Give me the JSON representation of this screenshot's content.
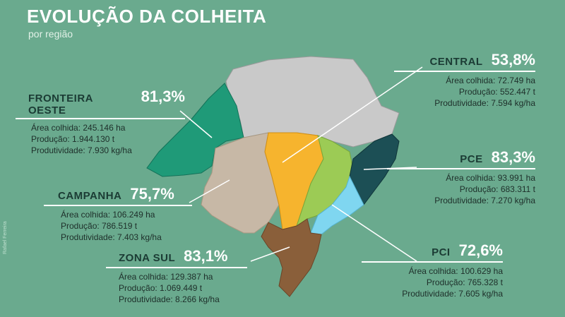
{
  "header": {
    "title": "EVOLUÇÃO DA COLHEITA",
    "subtitle": "por região",
    "credit": "Rafael Ferreira"
  },
  "colors": {
    "background": "#6aaa8e",
    "central": "#c9c9c9",
    "fronteira_oeste": "#1f9a78",
    "campanha": "#c7b8a6",
    "zona_sul": "#8a5f3a",
    "pce": "#1c4f55",
    "pci": "#7fd6f0",
    "orange_area": "#f6b42e",
    "green_area": "#9ccb55"
  },
  "regions": {
    "central": {
      "name": "CENTRAL",
      "percent": "53,8%",
      "area": "Área colhida: 72.749 ha",
      "production": "Produção: 552.447 t",
      "productivity": "Produtividade: 7.594 kg/ha"
    },
    "fronteira_oeste": {
      "name": "FRONTEIRA OESTE",
      "percent": "81,3%",
      "area": "Área colhida: 245.146 ha",
      "production": "Produção: 1.944.130 t",
      "productivity": "Produtividade: 7.930 kg/ha"
    },
    "pce": {
      "name": "PCE",
      "percent": "83,3%",
      "area": "Área colhida: 93.991 ha",
      "production": "Produção: 683.311 t",
      "productivity": "Produtividade: 7.270 kg/ha"
    },
    "campanha": {
      "name": "CAMPANHA",
      "percent": "75,7%",
      "area": "Área colhida: 106.249 ha",
      "production": "Produção: 786.519 t",
      "productivity": "Produtividade: 7.403 kg/ha"
    },
    "zona_sul": {
      "name": "ZONA SUL",
      "percent": "83,1%",
      "area": "Área colhida: 129.387 ha",
      "production": "Produção: 1.069.449 t",
      "productivity": "Produtividade: 8.266 kg/ha"
    },
    "pci": {
      "name": "PCI",
      "percent": "72,6%",
      "area": "Área colhida: 100.629 ha",
      "production": "Produção: 765.328 t",
      "productivity": "Produtividade: 7.605 kg/ha"
    }
  }
}
